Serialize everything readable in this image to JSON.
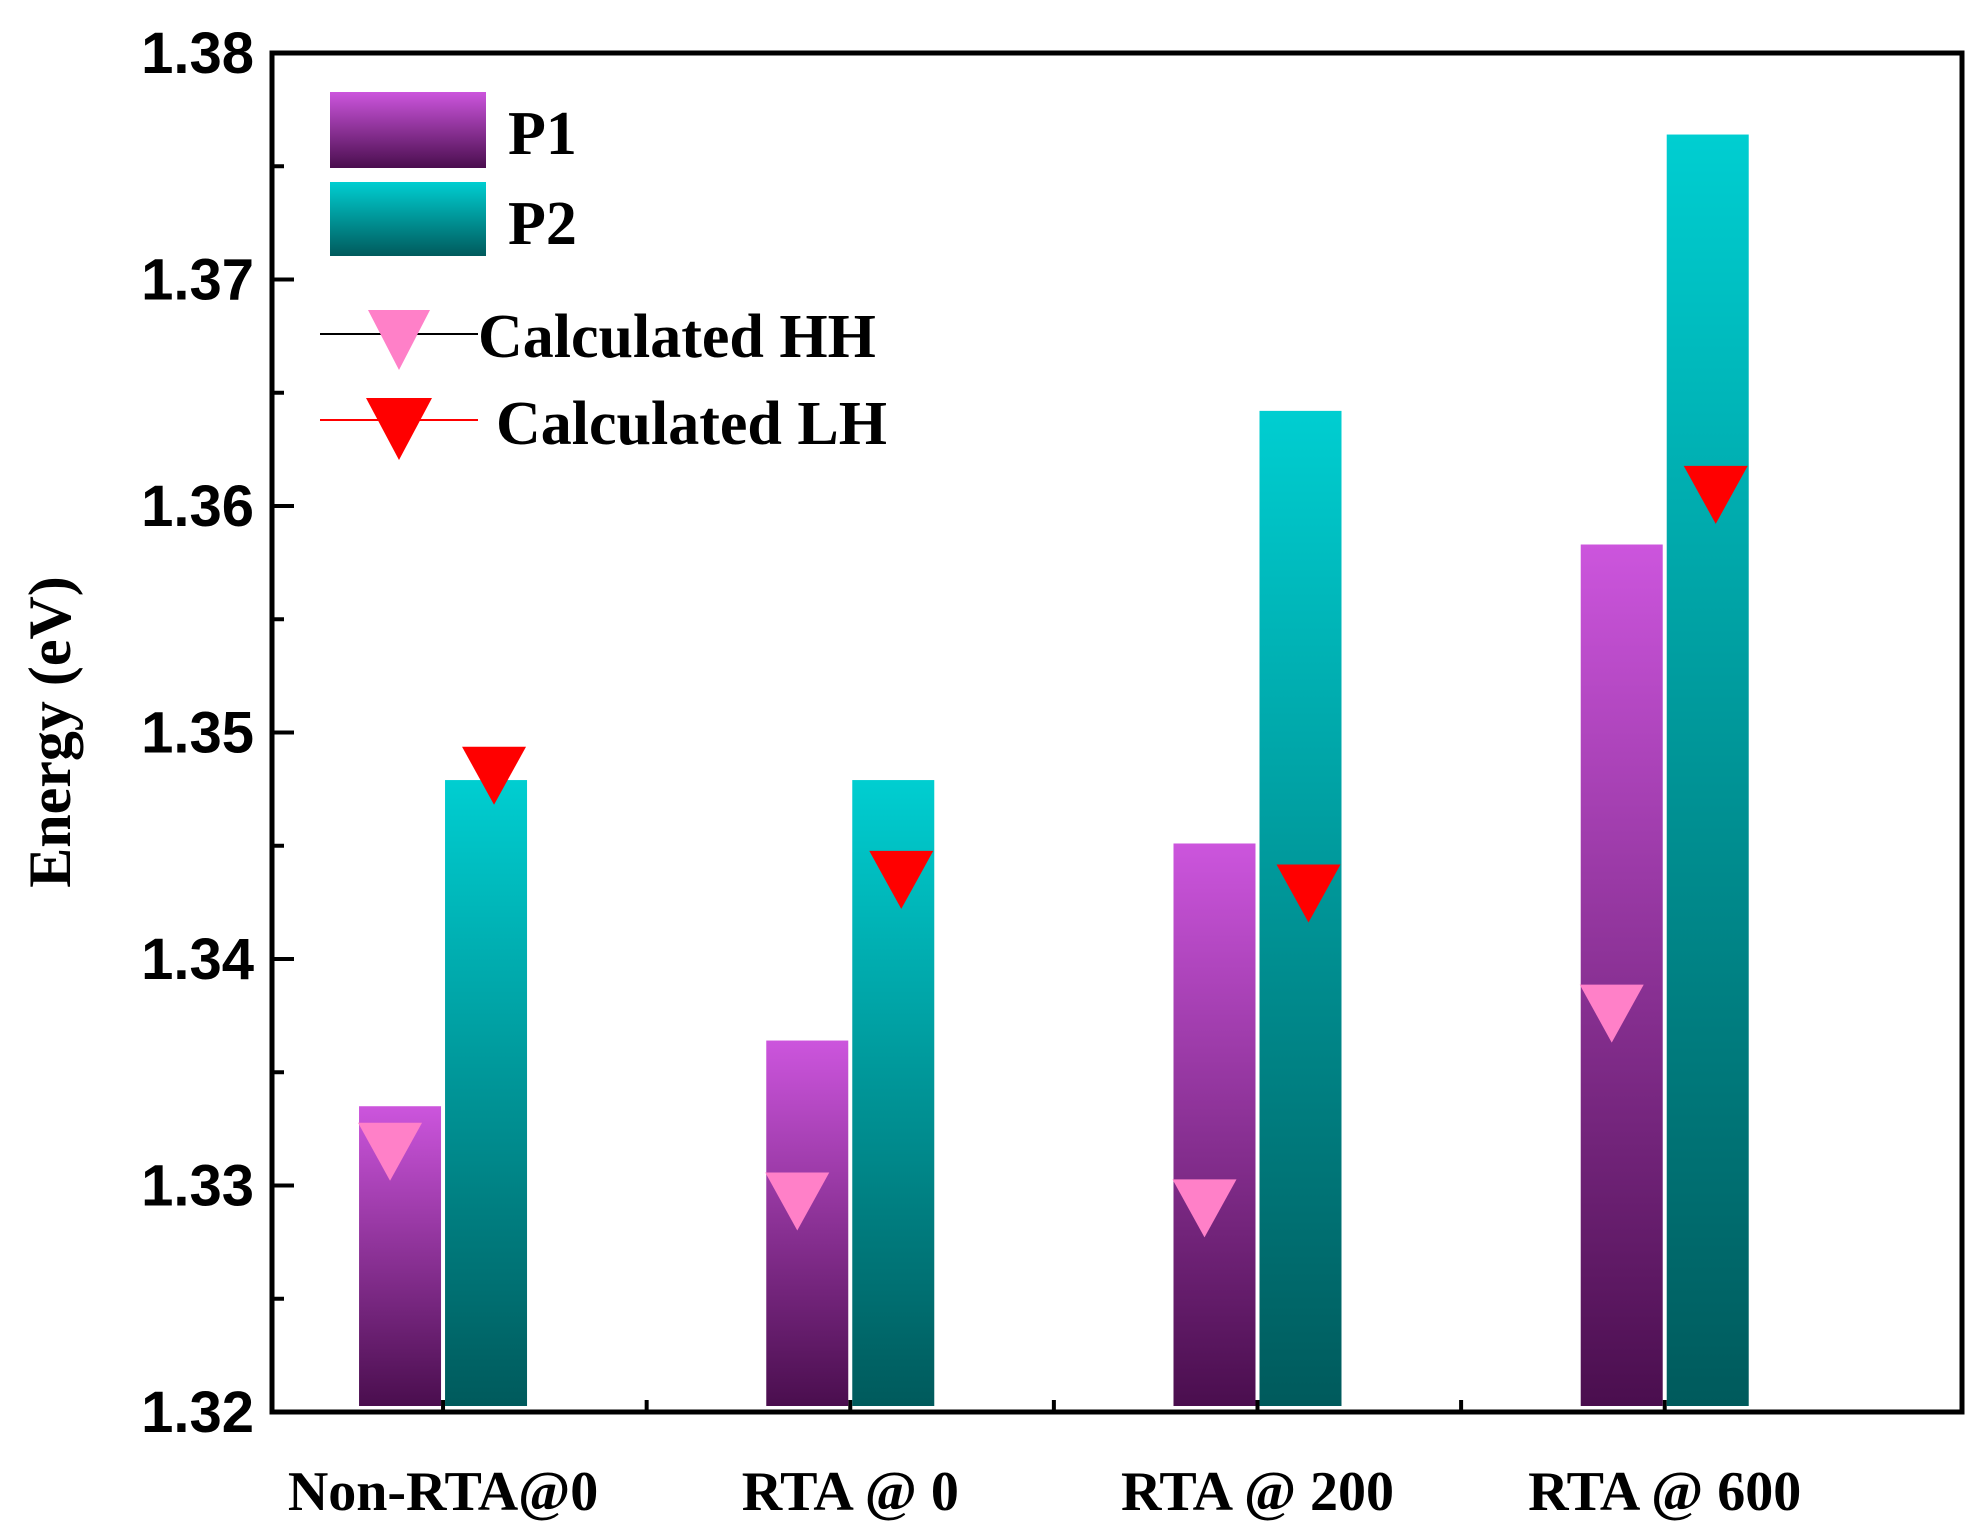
{
  "chart_data": {
    "type": "bar",
    "ylabel": "Energy (eV)",
    "xlabel": "",
    "title": "",
    "ylim": [
      1.32,
      1.38
    ],
    "yticks": [
      "1.32",
      "1.33",
      "1.34",
      "1.35",
      "1.36",
      "1.37",
      "1.38"
    ],
    "categories": [
      "Non-RTA@0",
      "RTA @ 0",
      "RTA @ 200",
      "RTA @ 600"
    ],
    "series": [
      {
        "name": "P1",
        "type": "bar",
        "values": [
          1.3335,
          1.3364,
          1.3451,
          1.3583
        ],
        "color_top": "#cc55dd",
        "color_bottom": "#4a0e4e"
      },
      {
        "name": "P2",
        "type": "bar",
        "values": [
          1.3479,
          1.3479,
          1.3642,
          1.3764
        ],
        "color_top": "#00ced1",
        "color_bottom": "#005a5c"
      },
      {
        "name": "Calculated HH",
        "type": "scatter",
        "marker": "down-triangle",
        "values": [
          1.3318,
          1.3296,
          1.3293,
          1.3379
        ],
        "color": "#ff80c8"
      },
      {
        "name": "Calculated LH",
        "type": "scatter",
        "marker": "down-triangle",
        "values": [
          1.3484,
          1.3438,
          1.3432,
          1.3608
        ],
        "color": "#ff0000"
      }
    ],
    "grid": false,
    "legend_position": "top-left"
  }
}
